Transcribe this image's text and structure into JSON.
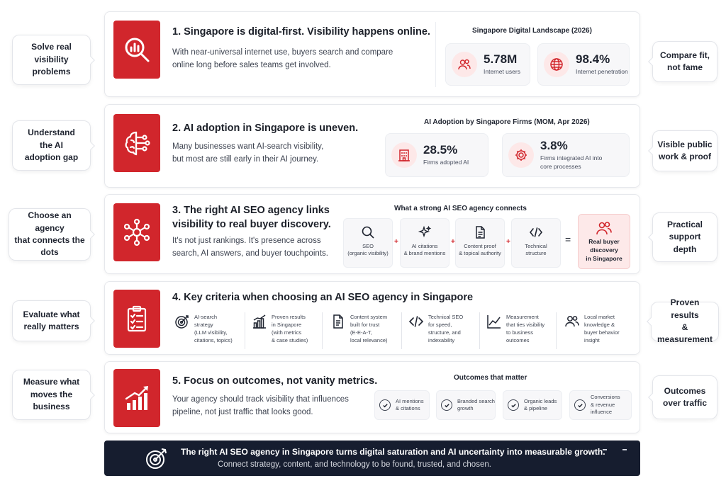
{
  "left_callouts": [
    {
      "text": "Solve real\nvisibility\nproblems"
    },
    {
      "text": "Understand\nthe AI\nadoption gap"
    },
    {
      "text": "Choose an agency\nthat connects the\ndots"
    },
    {
      "text": "Evaluate what\nreally matters"
    },
    {
      "text": "Measure what\nmoves the\nbusiness"
    }
  ],
  "right_callouts": [
    {
      "text": "Compare fit,\nnot fame"
    },
    {
      "text": "Visible public\nwork & proof"
    },
    {
      "text": "Practical\nsupport\ndepth"
    },
    {
      "text": "Proven results\n& measurement"
    },
    {
      "text": "Outcomes\nover traffic"
    }
  ],
  "section1": {
    "title": "1. Singapore is digital-first. Visibility happens online.",
    "description": "With near-universal internet use, buyers search and compare\nonline long before sales teams get involved.",
    "panel_title": "Singapore Digital Landscape (2026)",
    "stats": [
      {
        "value": "5.78M",
        "label": "Internet users",
        "icon": "users-icon"
      },
      {
        "value": "98.4%",
        "label": "Internet penetration",
        "icon": "globe-icon"
      }
    ]
  },
  "section2": {
    "title": "2. AI adoption in Singapore is uneven.",
    "description": "Many businesses want AI-search visibility,\nbut most are still early in their AI journey.",
    "panel_title": "AI Adoption by Singapore Firms (MOM, Apr 2026)",
    "stats": [
      {
        "value": "28.5%",
        "label": "Firms adopted AI",
        "icon": "building-icon"
      },
      {
        "value": "3.8%",
        "label": "Firms integrated AI into\ncore processes",
        "icon": "gear-icon"
      }
    ]
  },
  "section3": {
    "title": "3. The right AI SEO agency links\nvisibility to real buyer discovery.",
    "description": "It's not just rankings. It's presence across\nsearch, AI answers, and buyer touchpoints.",
    "panel_title": "What a strong AI SEO agency connects",
    "items": [
      {
        "label": "SEO\n(organic visibility)",
        "icon": "search-icon"
      },
      {
        "label": "AI citations\n& brand mentions",
        "icon": "sparkle-icon"
      },
      {
        "label": "Content proof\n& topical authority",
        "icon": "document-icon"
      },
      {
        "label": "Technical\nstructure",
        "icon": "code-icon"
      }
    ],
    "plus": "+",
    "equals": "=",
    "result": "Real buyer\ndiscovery\nin Singapore"
  },
  "section4": {
    "title": "4. Key criteria when choosing an AI SEO agency in Singapore",
    "criteria": [
      {
        "label": "AI-search\nstrategy\n(LLM visibility,\ncitations, topics)",
        "icon": "target-icon"
      },
      {
        "label": "Proven results\nin Singapore\n(with metrics\n& case studies)",
        "icon": "bar-chart-icon"
      },
      {
        "label": "Content system\nbuilt for trust\n(E-E-A-T,\nlocal relevance)",
        "icon": "document-icon"
      },
      {
        "label": "Technical SEO\nfor speed,\nstructure, and\nindexability",
        "icon": "code-icon"
      },
      {
        "label": "Measurement\nthat ties visibility\nto business\noutcomes",
        "icon": "line-chart-icon"
      },
      {
        "label": "Local market\nknowledge &\nbuyer behavior\ninsight",
        "icon": "users-icon"
      }
    ]
  },
  "section5": {
    "title": "5. Focus on outcomes, not vanity metrics.",
    "description": "Your agency should track visibility that influences\npipeline, not just traffic that looks good.",
    "panel_title": "Outcomes that matter",
    "outcomes": [
      {
        "label": "AI mentions\n& citations"
      },
      {
        "label": "Branded search\ngrowth"
      },
      {
        "label": "Organic leads\n& pipeline"
      },
      {
        "label": "Conversions\n& revenue\ninfluence"
      }
    ]
  },
  "footer": {
    "headline": "The right AI SEO agency in Singapore turns digital saturation and AI uncertainty into measurable growth.",
    "subline": "Connect strategy, content, and technology to be found, trusted, and chosen.",
    "icon": "target-icon"
  },
  "colors": {
    "accent": "#d1262c",
    "accent_soft": "#fde8e8",
    "banner": "#161d2f"
  }
}
